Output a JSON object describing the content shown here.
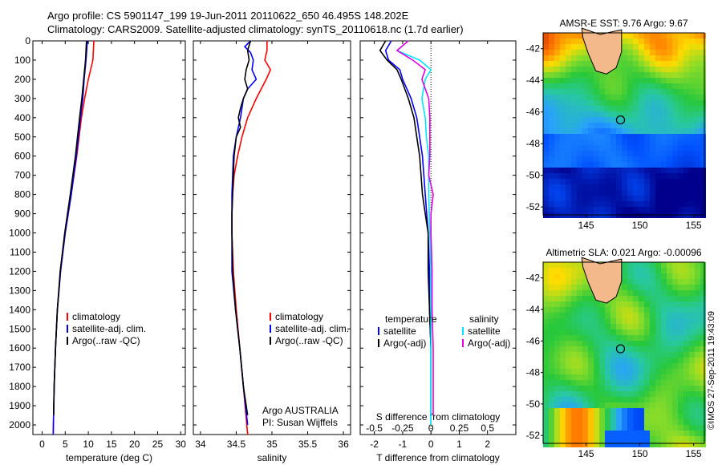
{
  "header": {
    "line1": "Argo profile: CS 5901147_199 19-Jun-2011 20110622_650 46.495S 148.202E",
    "line2": "Climatology: CARS2009. Satellite-adjusted climatology: synTS_20110618.nc (1.7d earlier)"
  },
  "side_text": "©IMOS 27-Sep-2011 19:43:09",
  "colors": {
    "red": "#ff0000",
    "blue": "#0000ff",
    "black": "#000000",
    "cyan": "#00e5ff",
    "magenta": "#e000e0"
  },
  "chart_data": [
    {
      "type": "line",
      "xlabel": "temperature (deg C)",
      "ylabel": "",
      "xlim": [
        -2,
        31
      ],
      "ylim": [
        0,
        2050
      ],
      "y_reversed": true,
      "xticks": [
        0,
        5,
        10,
        15,
        20,
        25,
        30
      ],
      "yticks": [
        0,
        100,
        200,
        300,
        400,
        500,
        600,
        700,
        800,
        900,
        1000,
        1100,
        1200,
        1300,
        1400,
        1500,
        1600,
        1700,
        1800,
        1900,
        2000
      ],
      "legend": {
        "placement": "lower-center",
        "entries": [
          {
            "label": "climatology",
            "color": "#ff0000"
          },
          {
            "label": "satellite-adj. clim.",
            "color": "#0000ff"
          },
          {
            "label": "Argo(..raw -QC)",
            "color": "#000000"
          }
        ]
      },
      "series": [
        {
          "name": "climatology",
          "color": "#ff0000",
          "depth": [
            0,
            100,
            200,
            300,
            400,
            600,
            800,
            1000,
            1200,
            1400,
            1600,
            1800,
            2050
          ],
          "values": [
            11.2,
            11.0,
            10.0,
            9.2,
            8.5,
            7.5,
            6.3,
            5.0,
            4.0,
            3.3,
            2.9,
            2.6,
            2.4
          ]
        },
        {
          "name": "satellite-adj. clim.",
          "color": "#0000ff",
          "depth": [
            0,
            100,
            200,
            300,
            400,
            600,
            800,
            1000,
            1200,
            1400,
            1600,
            1800,
            2050
          ],
          "values": [
            9.8,
            9.5,
            9.1,
            8.8,
            8.3,
            7.4,
            6.3,
            5.0,
            4.0,
            3.3,
            2.9,
            2.6,
            2.4
          ]
        },
        {
          "name": "Argo(..raw -QC)",
          "color": "#000000",
          "depth": [
            0,
            100,
            200,
            300,
            400,
            600,
            800,
            1000,
            1200,
            1400,
            1600,
            1800,
            1950
          ],
          "values": [
            9.6,
            9.4,
            9.0,
            8.6,
            8.1,
            7.2,
            6.1,
            4.9,
            3.9,
            3.3,
            2.9,
            2.6,
            2.5
          ]
        }
      ]
    },
    {
      "type": "line",
      "xlabel": "salinity",
      "xlim": [
        33.9,
        36.1
      ],
      "ylim": [
        0,
        2050
      ],
      "y_reversed": true,
      "xticks": [
        34,
        34.5,
        35,
        35.5,
        36
      ],
      "annotation": [
        "Argo AUSTRALIA",
        "PI: Susan Wijffels"
      ],
      "legend": {
        "placement": "lower-right",
        "entries": [
          {
            "label": "climatology",
            "color": "#ff0000"
          },
          {
            "label": "satellite-adj. clim.",
            "color": "#0000ff"
          },
          {
            "label": "Argo(..raw -QC)",
            "color": "#000000"
          }
        ]
      },
      "series": [
        {
          "name": "climatology",
          "color": "#ff0000",
          "depth": [
            0,
            50,
            100,
            150,
            200,
            300,
            400,
            500,
            600,
            700,
            800,
            900,
            1000,
            1200,
            1400,
            1600,
            1800,
            2050
          ],
          "values": [
            34.93,
            34.93,
            34.9,
            34.98,
            34.92,
            34.78,
            34.66,
            34.58,
            34.52,
            34.47,
            34.45,
            34.44,
            34.44,
            34.46,
            34.5,
            34.55,
            34.6,
            34.66
          ]
        },
        {
          "name": "satellite-adj. clim.",
          "color": "#0000ff",
          "depth": [
            0,
            30,
            60,
            100,
            150,
            200,
            250,
            300,
            400,
            500,
            600,
            700,
            800,
            900,
            1000,
            1200,
            1400,
            1600,
            1800,
            2000
          ],
          "values": [
            34.7,
            34.62,
            34.7,
            34.74,
            34.72,
            34.78,
            34.66,
            34.6,
            34.56,
            34.5,
            34.46,
            34.45,
            34.44,
            34.44,
            34.44,
            34.44,
            34.49,
            34.55,
            34.6,
            34.66
          ]
        },
        {
          "name": "Argo(..raw -QC)",
          "color": "#000000",
          "depth": [
            0,
            50,
            100,
            150,
            200,
            250,
            300,
            350,
            400,
            450,
            500,
            600,
            700,
            800,
            900,
            1000,
            1200,
            1400,
            1600,
            1800,
            1950
          ],
          "values": [
            34.7,
            34.66,
            34.68,
            34.64,
            34.62,
            34.66,
            34.6,
            34.56,
            34.53,
            34.56,
            34.5,
            34.47,
            34.46,
            34.45,
            34.44,
            34.44,
            34.45,
            34.49,
            34.55,
            34.6,
            34.66
          ]
        }
      ]
    },
    {
      "type": "line",
      "xlabel": "T difference from climatology",
      "xlabel_top": "S difference from climatology",
      "xlim": [
        -2.5,
        3
      ],
      "x2lim": [
        -0.625,
        0.75
      ],
      "ylim": [
        0,
        2050
      ],
      "y_reversed": true,
      "xticks": [
        -2,
        -1,
        0,
        1,
        2
      ],
      "x2ticks": [
        -0.5,
        -0.25,
        0,
        0.25,
        0.5
      ],
      "x2ticklabels": [
        "-0.5",
        "-0.25",
        "0",
        "0.25",
        "0.5"
      ],
      "zero_line": true,
      "legend": {
        "placement": "lower-center",
        "groups": [
          {
            "title": "temperature",
            "entries": [
              {
                "label": "satellite",
                "color": "#0000ff"
              },
              {
                "label": "Argo(-adj)",
                "color": "#000000"
              }
            ]
          },
          {
            "title": "salinity",
            "entries": [
              {
                "label": "satellite",
                "color": "#00e5ff"
              },
              {
                "label": "Argo(-adj)",
                "color": "#e000e0"
              }
            ]
          }
        ]
      },
      "series": [
        {
          "name": "temperature satellite",
          "color": "#0000ff",
          "depth": [
            0,
            50,
            100,
            150,
            200,
            300,
            400,
            500,
            600,
            800,
            1000,
            1200,
            1400,
            1600,
            1800,
            2000
          ],
          "values": [
            -1.4,
            -1.6,
            -1.5,
            -1.1,
            -1.0,
            -0.7,
            -0.5,
            -0.4,
            -0.3,
            -0.2,
            -0.1,
            -0.05,
            -0.05,
            0,
            0,
            0
          ]
        },
        {
          "name": "temperature Argo(-adj)",
          "color": "#000000",
          "depth": [
            0,
            50,
            100,
            150,
            200,
            300,
            400,
            500,
            600,
            800,
            900,
            1000,
            1200,
            1400,
            1600,
            1800,
            1950
          ],
          "values": [
            -1.6,
            -1.8,
            -1.55,
            -1.2,
            -1.05,
            -0.8,
            -0.6,
            -0.5,
            -0.4,
            -0.3,
            -0.2,
            -0.1,
            -0.1,
            -0.05,
            0,
            0,
            0
          ]
        },
        {
          "name": "salinity satellite",
          "color": "#00e5ff",
          "depth": [
            0,
            50,
            100,
            150,
            200,
            300,
            400,
            500,
            600,
            800,
            1000,
            1200,
            1400,
            1600,
            1800,
            2000
          ],
          "values": [
            -0.2,
            -0.3,
            -0.1,
            0.0,
            -0.05,
            -0.08,
            -0.05,
            -0.04,
            -0.02,
            -0.02,
            -0.01,
            0,
            0,
            0,
            0,
            0
          ]
        },
        {
          "name": "salinity Argo(-adj)",
          "color": "#e000e0",
          "depth": [
            0,
            50,
            100,
            150,
            200,
            300,
            400,
            500,
            600,
            700,
            800,
            900,
            1000,
            1200,
            1400,
            1600,
            1800,
            1950
          ],
          "values": [
            -0.2,
            -0.3,
            -0.16,
            -0.05,
            -0.08,
            -0.02,
            -0.01,
            -0.01,
            -0.01,
            -0.02,
            0.02,
            0.0,
            0.0,
            0.01,
            0.01,
            0.02,
            0.02,
            0.02
          ]
        }
      ]
    },
    {
      "type": "heatmap",
      "title": "AMSR-E SST: 9.76 Argo: 9.67",
      "xlim": [
        141,
        156
      ],
      "ylim": [
        -52.5,
        -41
      ],
      "xticks": [
        145,
        150,
        155
      ],
      "yticks": [
        -42,
        -44,
        -46,
        -48,
        -50,
        -52
      ],
      "marker": {
        "lon": 148.2,
        "lat": -46.5
      }
    },
    {
      "type": "heatmap",
      "title": "Altimetric SLA: 0.021 Argo: -0.00096",
      "xlim": [
        141,
        156
      ],
      "ylim": [
        -52.5,
        -41
      ],
      "xticks": [
        145,
        150,
        155
      ],
      "yticks": [
        -42,
        -44,
        -46,
        -48,
        -50,
        -52
      ],
      "marker": {
        "lon": 148.2,
        "lat": -46.5
      }
    }
  ]
}
